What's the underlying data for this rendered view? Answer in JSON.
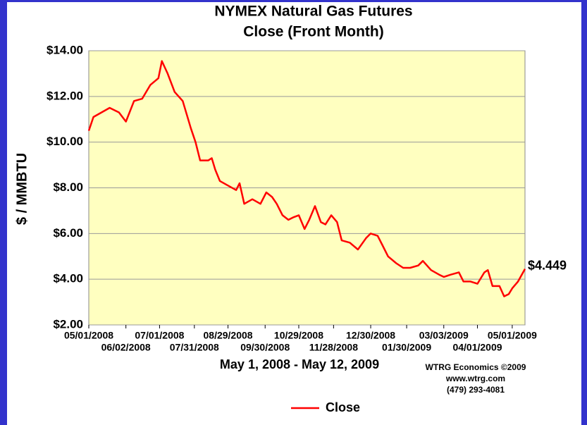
{
  "chart_data": {
    "type": "line",
    "title": "NYMEX Natural Gas Futures",
    "subtitle": "Close (Front Month)",
    "y_label": "$ / MMBTU",
    "x_label": "May 1, 2008 - May 12, 2009",
    "credits": [
      "WTRG Economics  ©2009",
      "www.wtrg.com",
      "(479) 293-4081"
    ],
    "annotation": "$4.449",
    "xlim": [
      "2008-05-01",
      "2009-05-12"
    ],
    "xticks": [
      {
        "value": "2008-05-01",
        "label": "05/01/2008"
      },
      {
        "value": "2008-06-02",
        "label": "06/02/2008"
      },
      {
        "value": "2008-07-01",
        "label": "07/01/2008"
      },
      {
        "value": "2008-07-31",
        "label": "07/31/2008"
      },
      {
        "value": "2008-08-29",
        "label": "08/29/2008"
      },
      {
        "value": "2008-09-30",
        "label": "09/30/2008"
      },
      {
        "value": "2008-10-29",
        "label": "10/29/2008"
      },
      {
        "value": "2008-11-28",
        "label": "11/28/2008"
      },
      {
        "value": "2008-12-30",
        "label": "12/30/2008"
      },
      {
        "value": "2009-01-30",
        "label": "01/30/2009"
      },
      {
        "value": "2009-03-03",
        "label": "03/03/2009"
      },
      {
        "value": "2009-04-01",
        "label": "04/01/2009"
      },
      {
        "value": "2009-05-01",
        "label": "05/01/2009"
      }
    ],
    "ylim": [
      2,
      14
    ],
    "yticks": [
      {
        "value": 2,
        "label": "$2.00"
      },
      {
        "value": 4,
        "label": "$4.00"
      },
      {
        "value": 6,
        "label": "$6.00"
      },
      {
        "value": 8,
        "label": "$8.00"
      },
      {
        "value": 10,
        "label": "$10.00"
      },
      {
        "value": 12,
        "label": "$12.00"
      },
      {
        "value": 14,
        "label": "$14.00"
      }
    ],
    "grid": true,
    "x": [
      "2008-05-01",
      "2008-05-05",
      "2008-05-12",
      "2008-05-19",
      "2008-05-27",
      "2008-06-02",
      "2008-06-09",
      "2008-06-16",
      "2008-06-23",
      "2008-06-30",
      "2008-07-03",
      "2008-07-08",
      "2008-07-14",
      "2008-07-21",
      "2008-07-28",
      "2008-08-01",
      "2008-08-05",
      "2008-08-12",
      "2008-08-15",
      "2008-08-18",
      "2008-08-22",
      "2008-08-29",
      "2008-09-05",
      "2008-09-08",
      "2008-09-12",
      "2008-09-19",
      "2008-09-26",
      "2008-10-01",
      "2008-10-06",
      "2008-10-10",
      "2008-10-15",
      "2008-10-20",
      "2008-10-24",
      "2008-10-29",
      "2008-11-03",
      "2008-11-07",
      "2008-11-12",
      "2008-11-17",
      "2008-11-21",
      "2008-11-26",
      "2008-12-01",
      "2008-12-05",
      "2008-12-12",
      "2008-12-19",
      "2008-12-26",
      "2008-12-30",
      "2009-01-05",
      "2009-01-09",
      "2009-01-14",
      "2009-01-21",
      "2009-01-27",
      "2009-02-02",
      "2009-02-09",
      "2009-02-13",
      "2009-02-20",
      "2009-02-27",
      "2009-03-03",
      "2009-03-09",
      "2009-03-16",
      "2009-03-20",
      "2009-03-26",
      "2009-04-01",
      "2009-04-07",
      "2009-04-10",
      "2009-04-14",
      "2009-04-20",
      "2009-04-24",
      "2009-04-28",
      "2009-05-01",
      "2009-05-06",
      "2009-05-12"
    ],
    "series": [
      {
        "name": "Close",
        "color": "#ff0000",
        "values": [
          10.5,
          11.1,
          11.3,
          11.5,
          11.3,
          10.9,
          11.8,
          11.9,
          12.5,
          12.8,
          13.55,
          13.0,
          12.2,
          11.8,
          10.6,
          10.0,
          9.2,
          9.2,
          9.3,
          8.8,
          8.3,
          8.1,
          7.9,
          8.2,
          7.3,
          7.5,
          7.3,
          7.8,
          7.6,
          7.3,
          6.8,
          6.6,
          6.7,
          6.8,
          6.2,
          6.6,
          7.2,
          6.5,
          6.4,
          6.8,
          6.5,
          5.7,
          5.6,
          5.3,
          5.8,
          6.0,
          5.9,
          5.5,
          5.0,
          4.7,
          4.5,
          4.5,
          4.6,
          4.8,
          4.4,
          4.2,
          4.1,
          4.2,
          4.3,
          3.9,
          3.9,
          3.8,
          4.3,
          4.4,
          3.7,
          3.7,
          3.25,
          3.35,
          3.6,
          3.9,
          4.449
        ]
      }
    ],
    "legend": "bottom"
  }
}
